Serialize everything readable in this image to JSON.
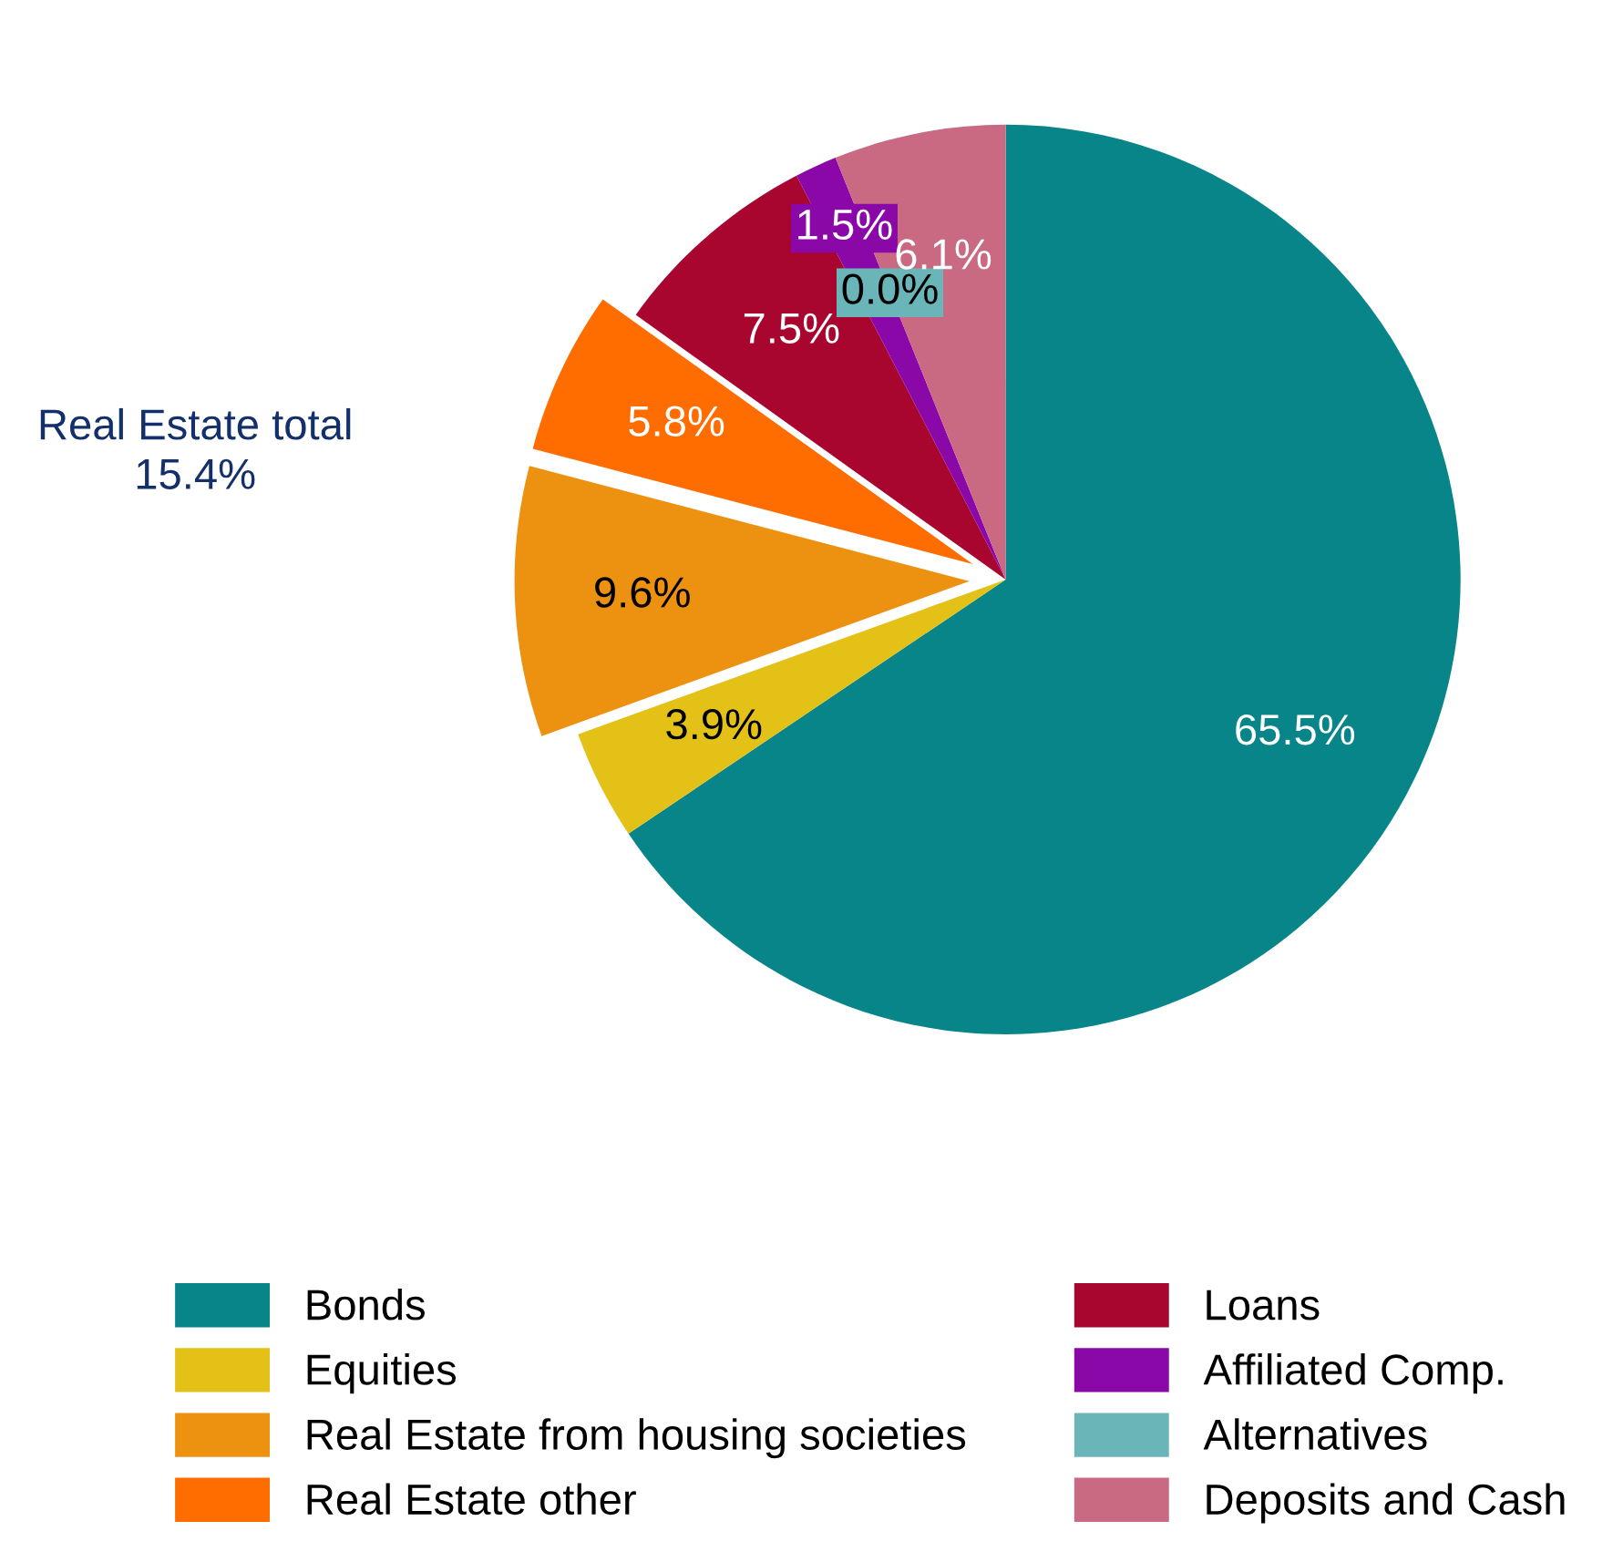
{
  "chart_data": {
    "type": "pie",
    "categories": [
      "Bonds",
      "Equities",
      "Real Estate from housing societies",
      "Real Estate other",
      "Loans",
      "Affiliated Comp.",
      "Alternatives",
      "Deposits and Cash"
    ],
    "values": [
      65.5,
      3.9,
      9.6,
      5.8,
      7.5,
      1.5,
      0.0,
      6.1
    ],
    "colors": [
      "#078589",
      "#e3c116",
      "#ed9210",
      "#ff6c00",
      "#a8052f",
      "#8a07a8",
      "#6ab5b8",
      "#c96a82"
    ],
    "value_labels": [
      "65.5%",
      "3.9%",
      "9.6%",
      "5.8%",
      "7.5%",
      "1.5%",
      "0.0%",
      "6.1%"
    ],
    "annotations": [
      "Real Estate total\n15.4%"
    ],
    "legend": "bottom"
  }
}
